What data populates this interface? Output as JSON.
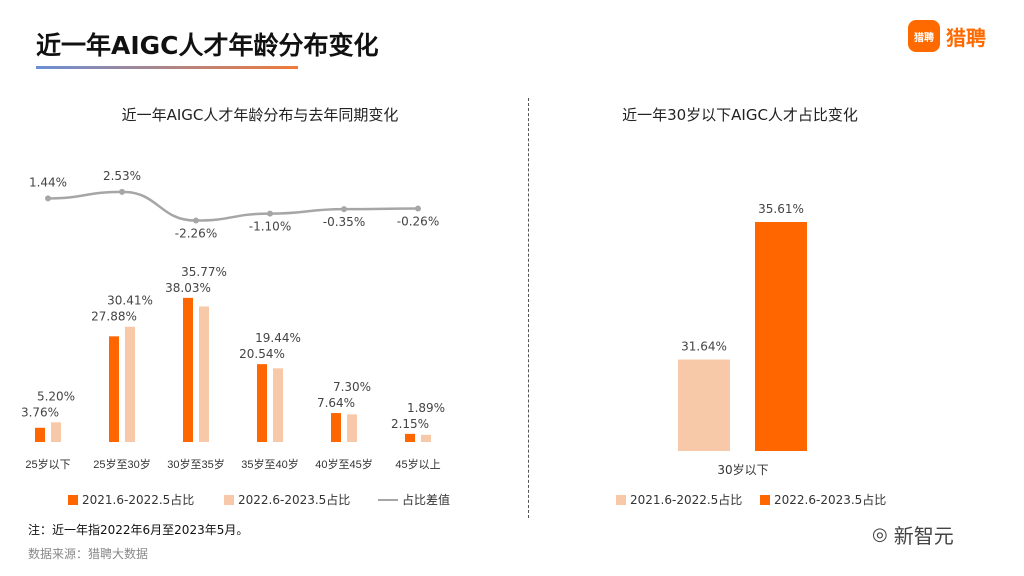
{
  "header": {
    "title": "近一年AIGC人才年龄分布变化",
    "brand": "猎聘",
    "brand_badge": "猎聘"
  },
  "colors": {
    "dark": "#ff6600",
    "light": "#f7c9a8",
    "line": "#a6a6a6"
  },
  "chart_data": [
    {
      "type": "bar+line",
      "title": "近一年AIGC人才年龄分布与去年同期变化",
      "categories": [
        "25岁以下",
        "25岁至30岁",
        "30岁至35岁",
        "35岁至40岁",
        "40岁至45岁",
        "45岁以上"
      ],
      "series": [
        {
          "name": "2021.6-2022.5占比",
          "type": "bar",
          "values": [
            3.76,
            27.88,
            38.03,
            20.54,
            7.64,
            2.15
          ],
          "labels": [
            "3.76%",
            "27.88%",
            "38.03%",
            "20.54%",
            "7.64%",
            "2.15%"
          ]
        },
        {
          "name": "2022.6-2023.5占比",
          "type": "bar",
          "values": [
            5.2,
            30.41,
            35.77,
            19.44,
            7.3,
            1.89
          ],
          "labels": [
            "5.20%",
            "30.41%",
            "35.77%",
            "19.44%",
            "7.30%",
            "1.89%"
          ]
        },
        {
          "name": "占比差值",
          "type": "line",
          "values": [
            1.44,
            2.53,
            -2.26,
            -1.1,
            -0.35,
            -0.26
          ],
          "labels": [
            "1.44%",
            "2.53%",
            "-2.26%",
            "-1.10%",
            "-0.35%",
            "-0.26%"
          ]
        }
      ],
      "legend": "bottom",
      "grid": false
    },
    {
      "type": "bar",
      "title": "近一年30岁以下AIGC人才占比变化",
      "categories": [
        "30岁以下"
      ],
      "ylim": [
        29,
        36
      ],
      "series": [
        {
          "name": "2021.6-2022.5占比",
          "values": [
            31.64
          ],
          "labels": [
            "31.64%"
          ]
        },
        {
          "name": "2022.6-2023.5占比",
          "values": [
            35.61
          ],
          "labels": [
            "35.61%"
          ]
        }
      ],
      "legend": "bottom",
      "grid": false
    }
  ],
  "footer": {
    "note": "注：近一年指2022年6月至2023年5月。",
    "source": "数据来源：猎聘大数据",
    "watermark": "新智元"
  }
}
